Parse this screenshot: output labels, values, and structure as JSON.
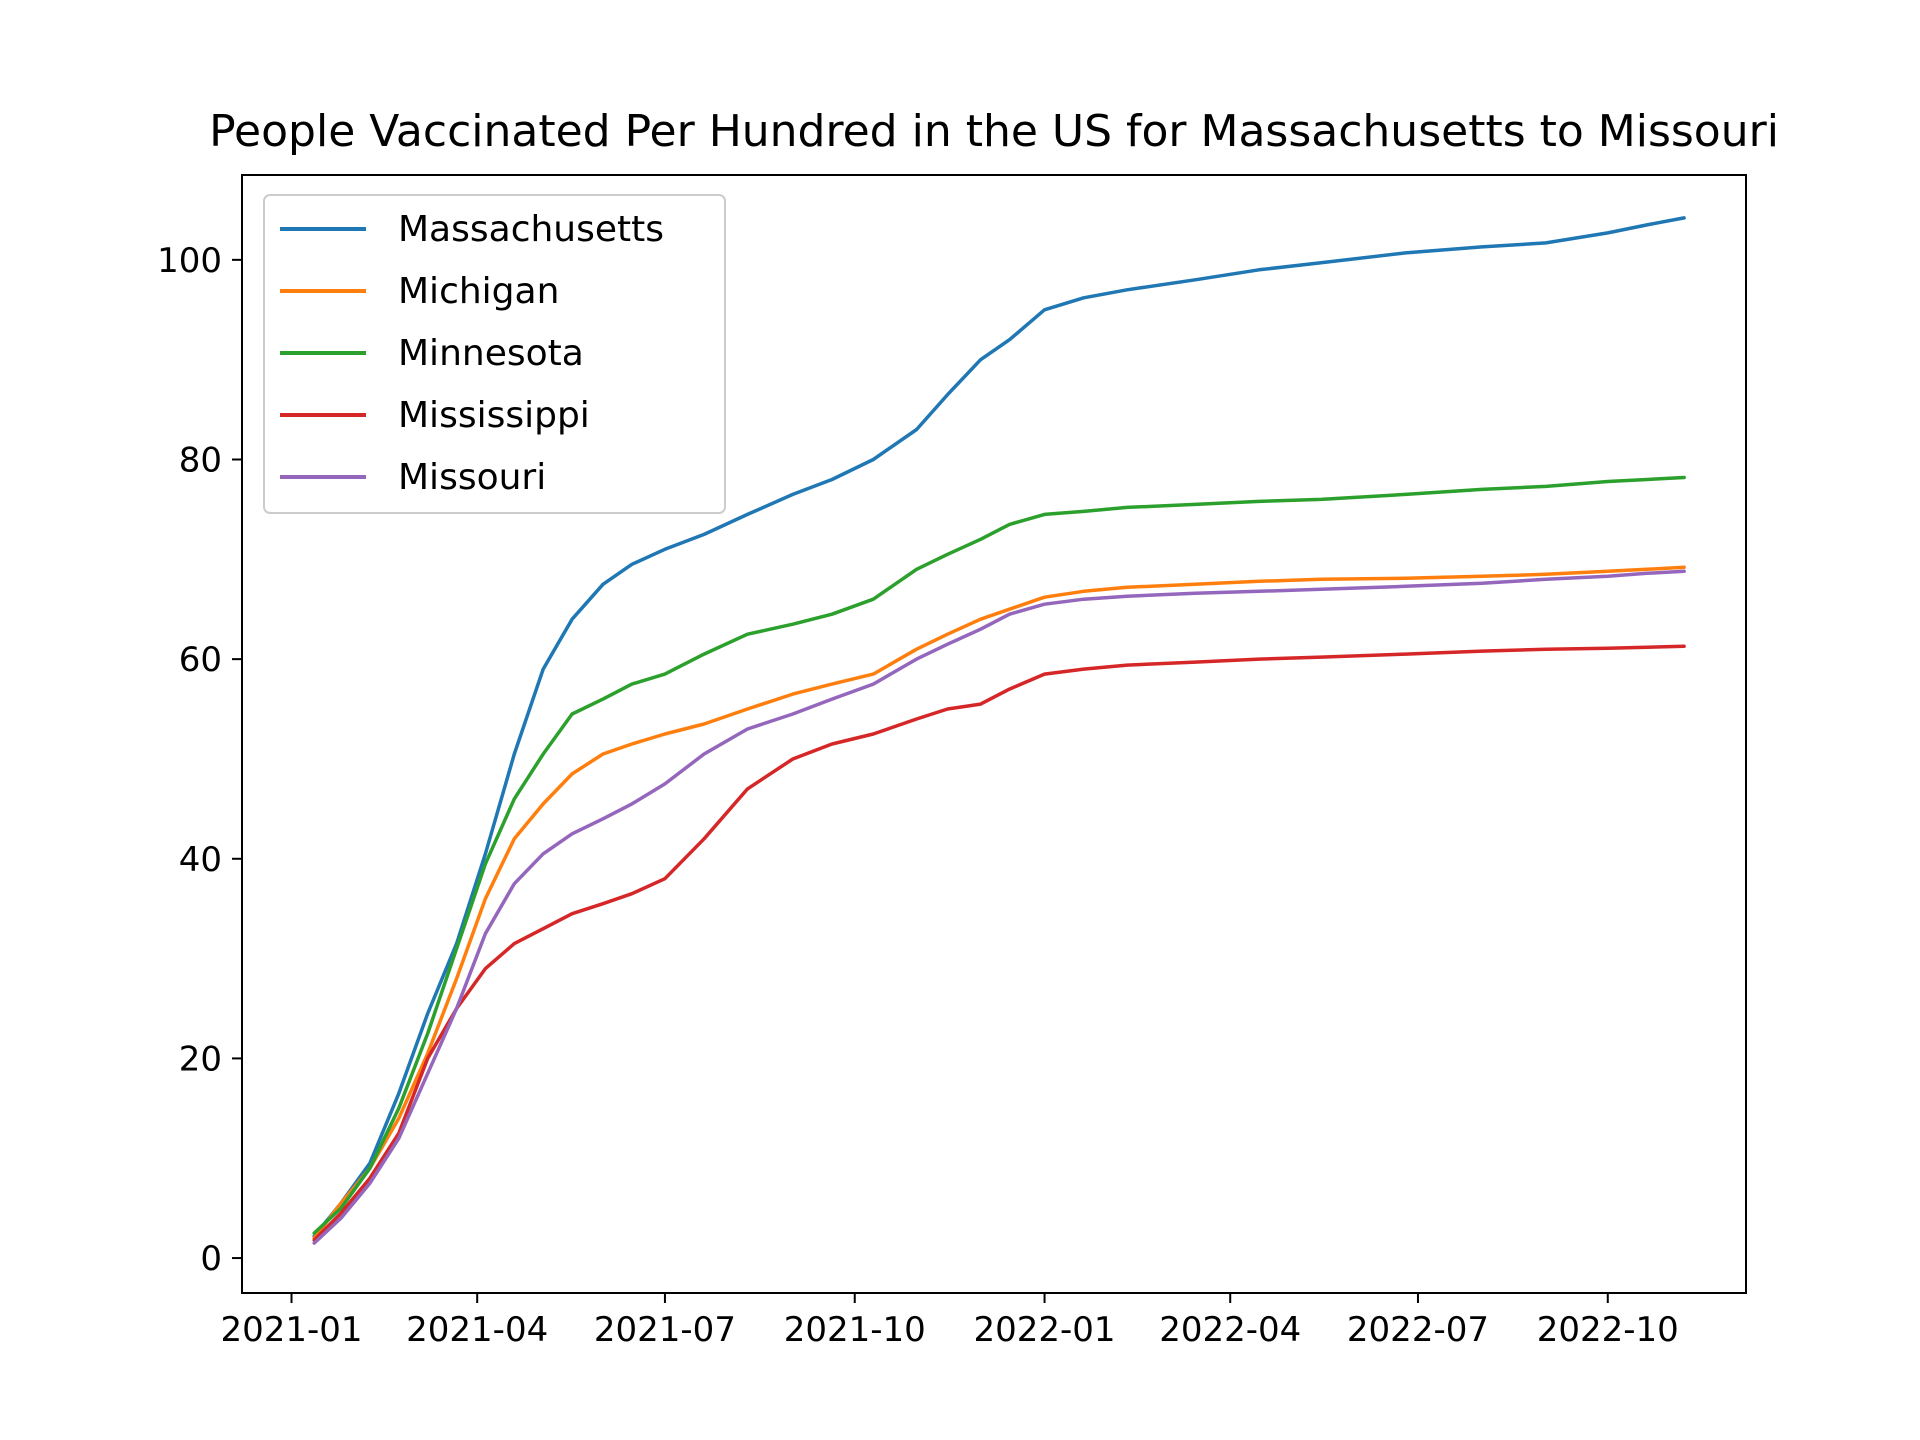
{
  "chart_data": {
    "type": "line",
    "title": "People Vaccinated Per Hundred in the US for Massachusetts to Missouri",
    "xlabel": "",
    "ylabel": "",
    "x_tick_labels": [
      "2021-01",
      "2021-04",
      "2021-07",
      "2021-10",
      "2022-01",
      "2022-04",
      "2022-07",
      "2022-10"
    ],
    "x_ticks": [
      "2021-01-01",
      "2021-04-01",
      "2021-07-01",
      "2021-10-01",
      "2022-01-01",
      "2022-04-01",
      "2022-07-01",
      "2022-10-01"
    ],
    "y_ticks": [
      0,
      20,
      40,
      60,
      80,
      100
    ],
    "xlim": [
      "2020-12-08",
      "2022-12-07"
    ],
    "ylim": [
      -3.5,
      108.5
    ],
    "grid": false,
    "legend_position": "top-left",
    "x": [
      "2021-01-12",
      "2021-01-25",
      "2021-02-08",
      "2021-02-22",
      "2021-03-08",
      "2021-03-22",
      "2021-04-05",
      "2021-04-19",
      "2021-05-03",
      "2021-05-17",
      "2021-06-01",
      "2021-06-15",
      "2021-07-01",
      "2021-07-20",
      "2021-08-10",
      "2021-09-01",
      "2021-09-20",
      "2021-10-10",
      "2021-10-31",
      "2021-11-15",
      "2021-12-01",
      "2021-12-15",
      "2022-01-01",
      "2022-01-20",
      "2022-02-10",
      "2022-03-15",
      "2022-04-15",
      "2022-05-15",
      "2022-06-25",
      "2022-08-01",
      "2022-09-01",
      "2022-10-01",
      "2022-10-20",
      "2022-11-07"
    ],
    "series": [
      {
        "name": "Massachusetts",
        "color": "#1f77b4",
        "values": [
          2.2,
          5.5,
          9.5,
          16.5,
          24.5,
          31.5,
          40.5,
          50.5,
          59,
          64,
          67.5,
          69.5,
          71,
          72.5,
          74.5,
          76.5,
          78,
          80,
          83,
          86.5,
          90,
          92,
          95,
          96.2,
          97,
          98,
          99,
          99.7,
          100.7,
          101.3,
          101.7,
          102.7,
          103.5,
          104.2
        ]
      },
      {
        "name": "Michigan",
        "color": "#ff7f0e",
        "values": [
          2,
          5.5,
          9,
          14,
          20.5,
          28,
          36,
          42,
          45.5,
          48.5,
          50.5,
          51.5,
          52.5,
          53.5,
          55,
          56.5,
          57.5,
          58.5,
          61,
          62.5,
          64,
          65,
          66.2,
          66.8,
          67.2,
          67.5,
          67.8,
          68,
          68.1,
          68.3,
          68.5,
          68.8,
          69,
          69.2
        ]
      },
      {
        "name": "Minnesota",
        "color": "#2ca02c",
        "values": [
          2.5,
          5,
          9,
          15,
          22.5,
          31,
          39.5,
          46,
          50.5,
          54.5,
          56,
          57.5,
          58.5,
          60.5,
          62.5,
          63.5,
          64.5,
          66,
          69,
          70.5,
          72,
          73.5,
          74.5,
          74.8,
          75.2,
          75.5,
          75.8,
          76,
          76.5,
          77,
          77.3,
          77.8,
          78,
          78.2
        ]
      },
      {
        "name": "Mississippi",
        "color": "#d62728",
        "values": [
          1.8,
          4.5,
          8,
          12.5,
          20,
          25,
          29,
          31.5,
          33,
          34.5,
          35.5,
          36.5,
          38,
          42,
          47,
          50,
          51.5,
          52.5,
          54,
          55,
          55.5,
          57,
          58.5,
          59,
          59.4,
          59.7,
          60,
          60.2,
          60.5,
          60.8,
          61,
          61.1,
          61.2,
          61.3
        ]
      },
      {
        "name": "Missouri",
        "color": "#9467bd",
        "values": [
          1.5,
          4,
          7.5,
          12,
          18.5,
          25,
          32.5,
          37.5,
          40.5,
          42.5,
          44,
          45.5,
          47.5,
          50.5,
          53,
          54.5,
          56,
          57.5,
          60,
          61.5,
          63,
          64.5,
          65.5,
          66,
          66.3,
          66.6,
          66.8,
          67,
          67.3,
          67.6,
          68,
          68.3,
          68.6,
          68.8
        ]
      }
    ]
  }
}
